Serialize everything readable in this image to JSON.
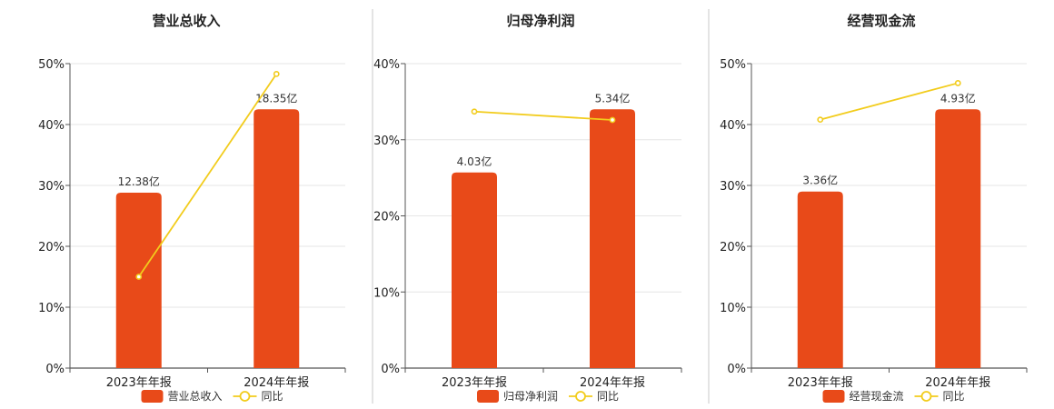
{
  "colors": {
    "bar": "#E84A19",
    "line": "#F2CC1C",
    "grid": "#E6E6E6",
    "axis": "#555555",
    "separator": "#C8C8C8"
  },
  "chart_data": [
    {
      "type": "bar",
      "title": "营业总收入",
      "categories": [
        "2023年年报",
        "2024年年报"
      ],
      "series": [
        {
          "name": "营业总收入",
          "kind": "bar",
          "values": [
            28.8,
            42.5
          ],
          "labels": [
            "12.38亿",
            "18.35亿"
          ]
        },
        {
          "name": "同比",
          "kind": "line",
          "values": [
            15.0,
            48.3
          ]
        }
      ],
      "yticks": [
        "0%",
        "10%",
        "20%",
        "30%",
        "40%",
        "50%"
      ],
      "ylim": [
        0,
        50
      ],
      "grid": true,
      "legend": "bottom-center"
    },
    {
      "type": "bar",
      "title": "归母净利润",
      "categories": [
        "2023年年报",
        "2024年年报"
      ],
      "series": [
        {
          "name": "归母净利润",
          "kind": "bar",
          "values": [
            25.7,
            34.0
          ],
          "labels": [
            "4.03亿",
            "5.34亿"
          ]
        },
        {
          "name": "同比",
          "kind": "line",
          "values": [
            33.7,
            32.6
          ]
        }
      ],
      "yticks": [
        "0%",
        "10%",
        "20%",
        "30%",
        "40%"
      ],
      "ylim": [
        0,
        40
      ],
      "grid": true,
      "legend": "bottom-center"
    },
    {
      "type": "bar",
      "title": "经营现金流",
      "categories": [
        "2023年年报",
        "2024年年报"
      ],
      "series": [
        {
          "name": "经营现金流",
          "kind": "bar",
          "values": [
            29.0,
            42.5
          ],
          "labels": [
            "3.36亿",
            "4.93亿"
          ]
        },
        {
          "name": "同比",
          "kind": "line",
          "values": [
            40.8,
            46.8
          ]
        }
      ],
      "yticks": [
        "0%",
        "10%",
        "20%",
        "30%",
        "40%",
        "50%"
      ],
      "ylim": [
        0,
        50
      ],
      "grid": true,
      "legend": "bottom-center"
    }
  ]
}
